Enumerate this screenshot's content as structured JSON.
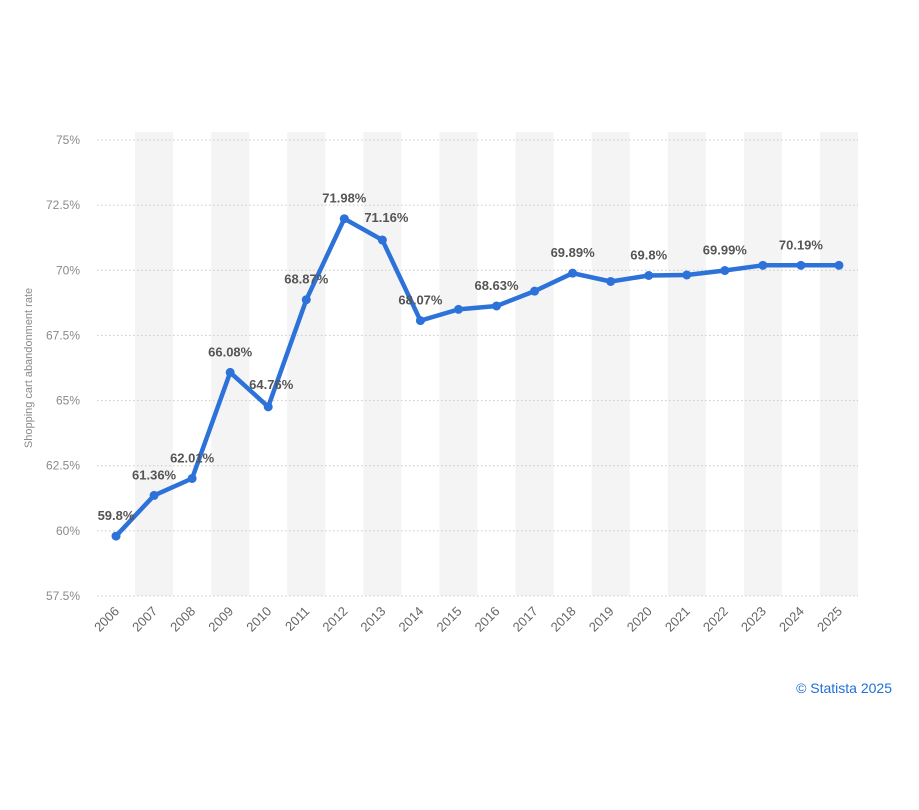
{
  "chart_data": {
    "type": "line",
    "title": "",
    "xlabel": "",
    "ylabel": "Shopping cart abandonment rate",
    "categories": [
      "2006",
      "2007",
      "2008",
      "2009",
      "2010",
      "2011",
      "2012",
      "2013",
      "2014",
      "2015",
      "2016",
      "2017",
      "2018",
      "2019",
      "2020",
      "2021",
      "2022",
      "2023",
      "2024",
      "2025"
    ],
    "values": [
      59.8,
      61.36,
      62.01,
      66.08,
      64.76,
      68.87,
      71.98,
      71.16,
      68.07,
      68.5,
      68.63,
      69.2,
      69.89,
      69.57,
      69.8,
      69.82,
      69.99,
      70.19,
      70.19,
      70.19
    ],
    "data_labels": [
      "59.8%",
      "61.36%",
      "62.01%",
      "66.08%",
      "64.76%",
      "68.87%",
      "71.98%",
      "71.16%",
      "68.07%",
      "",
      "68.63%",
      "",
      "69.89%",
      "",
      "69.8%",
      "",
      "69.99%",
      "",
      "70.19%",
      ""
    ],
    "y_ticks": [
      57.5,
      60,
      62.5,
      65,
      67.5,
      70,
      72.5,
      75
    ],
    "y_tick_labels": [
      "57.5%",
      "60%",
      "62.5%",
      "65%",
      "67.5%",
      "70%",
      "72.5%",
      "75%"
    ],
    "ylim": [
      57.5,
      75
    ],
    "grid": true,
    "line_color": "#2d72d9",
    "band_color": "#f4f4f4",
    "grid_color": "#c8c8c8"
  },
  "credit": "© Statista 2025"
}
